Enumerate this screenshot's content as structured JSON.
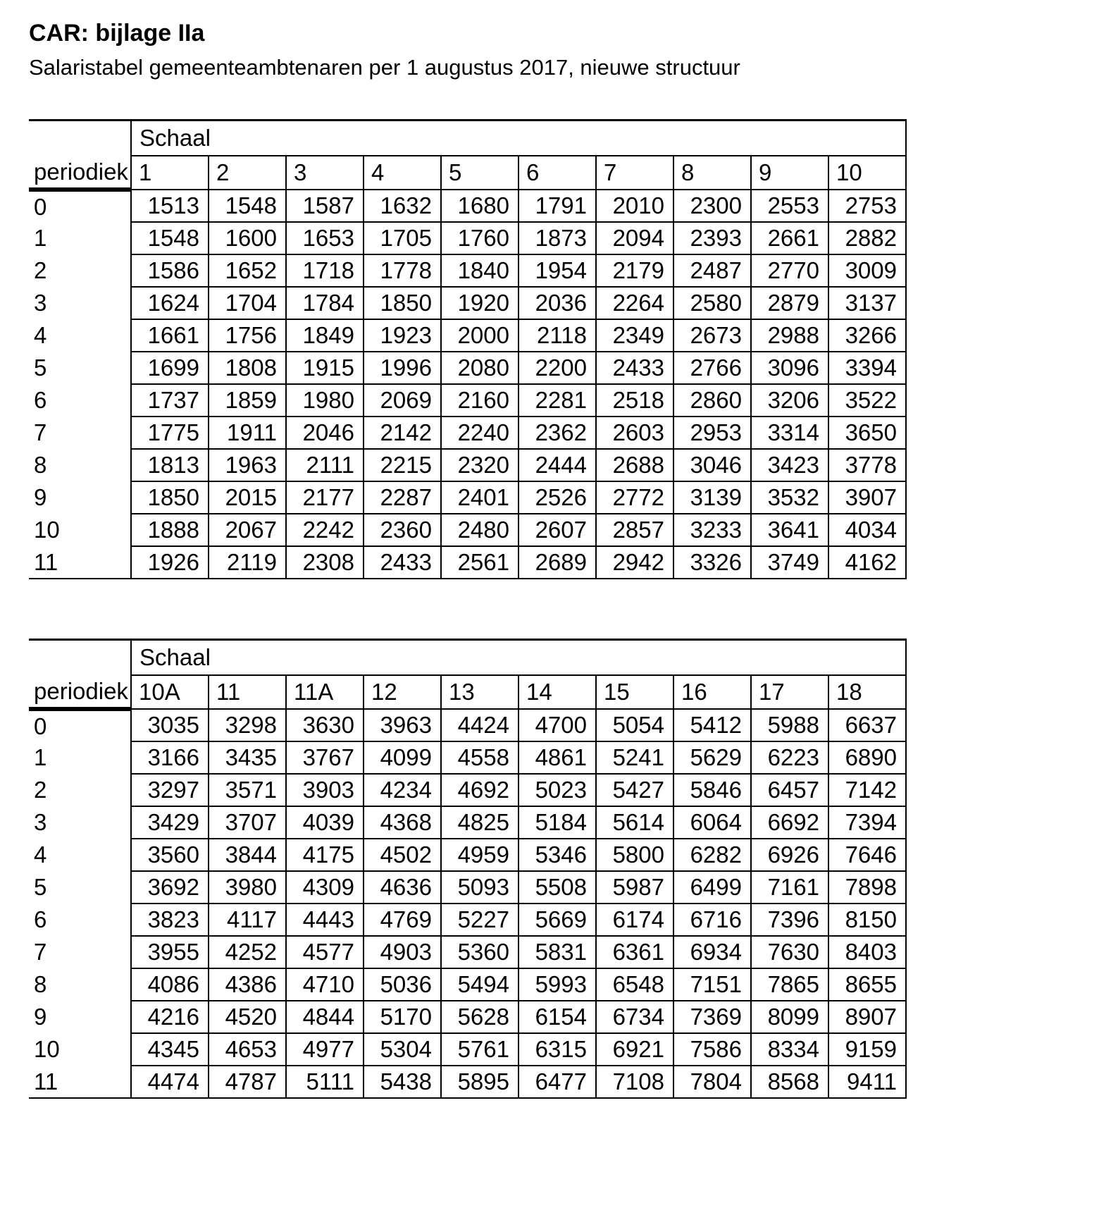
{
  "document": {
    "title": "CAR: bijlage IIa",
    "subtitle": "Salaristabel gemeenteambtenaren per 1 augustus 2017, nieuwe structuur"
  },
  "tables": [
    {
      "group_label": "Schaal",
      "corner_label": "periodiek",
      "columns": [
        "1",
        "2",
        "3",
        "4",
        "5",
        "6",
        "7",
        "8",
        "9",
        "10"
      ],
      "rows": [
        {
          "periodiek": "0",
          "values": [
            1513,
            1548,
            1587,
            1632,
            1680,
            1791,
            2010,
            2300,
            2553,
            2753
          ]
        },
        {
          "periodiek": "1",
          "values": [
            1548,
            1600,
            1653,
            1705,
            1760,
            1873,
            2094,
            2393,
            2661,
            2882
          ]
        },
        {
          "periodiek": "2",
          "values": [
            1586,
            1652,
            1718,
            1778,
            1840,
            1954,
            2179,
            2487,
            2770,
            3009
          ]
        },
        {
          "periodiek": "3",
          "values": [
            1624,
            1704,
            1784,
            1850,
            1920,
            2036,
            2264,
            2580,
            2879,
            3137
          ]
        },
        {
          "periodiek": "4",
          "values": [
            1661,
            1756,
            1849,
            1923,
            2000,
            2118,
            2349,
            2673,
            2988,
            3266
          ]
        },
        {
          "periodiek": "5",
          "values": [
            1699,
            1808,
            1915,
            1996,
            2080,
            2200,
            2433,
            2766,
            3096,
            3394
          ]
        },
        {
          "periodiek": "6",
          "values": [
            1737,
            1859,
            1980,
            2069,
            2160,
            2281,
            2518,
            2860,
            3206,
            3522
          ]
        },
        {
          "periodiek": "7",
          "values": [
            1775,
            1911,
            2046,
            2142,
            2240,
            2362,
            2603,
            2953,
            3314,
            3650
          ]
        },
        {
          "periodiek": "8",
          "values": [
            1813,
            1963,
            2111,
            2215,
            2320,
            2444,
            2688,
            3046,
            3423,
            3778
          ]
        },
        {
          "periodiek": "9",
          "values": [
            1850,
            2015,
            2177,
            2287,
            2401,
            2526,
            2772,
            3139,
            3532,
            3907
          ]
        },
        {
          "periodiek": "10",
          "values": [
            1888,
            2067,
            2242,
            2360,
            2480,
            2607,
            2857,
            3233,
            3641,
            4034
          ]
        },
        {
          "periodiek": "11",
          "values": [
            1926,
            2119,
            2308,
            2433,
            2561,
            2689,
            2942,
            3326,
            3749,
            4162
          ]
        }
      ]
    },
    {
      "group_label": "Schaal",
      "corner_label": "periodiek",
      "columns": [
        "10A",
        "11",
        "11A",
        "12",
        "13",
        "14",
        "15",
        "16",
        "17",
        "18"
      ],
      "rows": [
        {
          "periodiek": "0",
          "values": [
            3035,
            3298,
            3630,
            3963,
            4424,
            4700,
            5054,
            5412,
            5988,
            6637
          ]
        },
        {
          "periodiek": "1",
          "values": [
            3166,
            3435,
            3767,
            4099,
            4558,
            4861,
            5241,
            5629,
            6223,
            6890
          ]
        },
        {
          "periodiek": "2",
          "values": [
            3297,
            3571,
            3903,
            4234,
            4692,
            5023,
            5427,
            5846,
            6457,
            7142
          ]
        },
        {
          "periodiek": "3",
          "values": [
            3429,
            3707,
            4039,
            4368,
            4825,
            5184,
            5614,
            6064,
            6692,
            7394
          ]
        },
        {
          "periodiek": "4",
          "values": [
            3560,
            3844,
            4175,
            4502,
            4959,
            5346,
            5800,
            6282,
            6926,
            7646
          ]
        },
        {
          "periodiek": "5",
          "values": [
            3692,
            3980,
            4309,
            4636,
            5093,
            5508,
            5987,
            6499,
            7161,
            7898
          ]
        },
        {
          "periodiek": "6",
          "values": [
            3823,
            4117,
            4443,
            4769,
            5227,
            5669,
            6174,
            6716,
            7396,
            8150
          ]
        },
        {
          "periodiek": "7",
          "values": [
            3955,
            4252,
            4577,
            4903,
            5360,
            5831,
            6361,
            6934,
            7630,
            8403
          ]
        },
        {
          "periodiek": "8",
          "values": [
            4086,
            4386,
            4710,
            5036,
            5494,
            5993,
            6548,
            7151,
            7865,
            8655
          ]
        },
        {
          "periodiek": "9",
          "values": [
            4216,
            4520,
            4844,
            5170,
            5628,
            6154,
            6734,
            7369,
            8099,
            8907
          ]
        },
        {
          "periodiek": "10",
          "values": [
            4345,
            4653,
            4977,
            5304,
            5761,
            6315,
            6921,
            7586,
            8334,
            9159
          ]
        },
        {
          "periodiek": "11",
          "values": [
            4474,
            4787,
            5111,
            5438,
            5895,
            6477,
            7108,
            7804,
            8568,
            9411
          ]
        }
      ]
    }
  ]
}
